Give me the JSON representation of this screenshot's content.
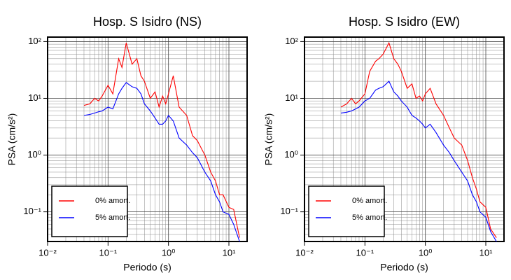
{
  "chart_data": [
    {
      "type": "line",
      "title": "Hosp. S Isidro (NS)",
      "x_label": "Periodo (s)",
      "y_label": "PSA (cm/s²)",
      "xscale": "log",
      "yscale": "log",
      "grid": true,
      "minor_grid": true,
      "legend": "lower left",
      "xlim": [
        0.01,
        20
      ],
      "ylim": [
        0.03,
        120
      ],
      "xticks": [
        {
          "value": 0.01,
          "label": "10⁻²"
        },
        {
          "value": 0.1,
          "label": "10⁻¹"
        },
        {
          "value": 1,
          "label": "10⁰"
        },
        {
          "value": 10,
          "label": "10¹"
        }
      ],
      "yticks": [
        {
          "value": 0.1,
          "label": "10⁻¹"
        },
        {
          "value": 1,
          "label": "10⁰"
        },
        {
          "value": 10,
          "label": "10¹"
        },
        {
          "value": 100,
          "label": "10²"
        }
      ],
      "x": [
        0.04,
        0.05,
        0.06,
        0.07,
        0.08,
        0.1,
        0.12,
        0.15,
        0.17,
        0.2,
        0.25,
        0.3,
        0.35,
        0.4,
        0.5,
        0.6,
        0.7,
        0.8,
        0.9,
        1.0,
        1.2,
        1.5,
        2,
        2.5,
        3,
        4,
        5,
        6,
        7,
        8,
        10,
        12,
        15
      ],
      "series": [
        {
          "name": "0% amort.",
          "color": "#ff0000",
          "values": [
            7.5,
            8,
            10,
            9,
            11,
            17,
            12,
            50,
            35,
            95,
            40,
            50,
            25,
            20,
            10,
            13,
            7,
            11,
            8,
            12,
            25,
            7,
            5,
            2.2,
            1.8,
            1.0,
            0.5,
            0.35,
            0.2,
            0.2,
            0.12,
            0.11,
            0.035
          ]
        },
        {
          "name": "5% amort.",
          "color": "#0000ff",
          "values": [
            5,
            5.2,
            5.5,
            5.8,
            6,
            7,
            6.5,
            12,
            15,
            19,
            16,
            15,
            12,
            8,
            6,
            4.5,
            3.5,
            3.5,
            4,
            5,
            4,
            2,
            1.5,
            1.1,
            0.9,
            0.5,
            0.35,
            0.2,
            0.15,
            0.1,
            0.09,
            0.06,
            0.03
          ]
        }
      ]
    },
    {
      "type": "line",
      "title": "Hosp. S Isidro (EW)",
      "x_label": "Periodo (s)",
      "y_label": "PSA (cm/s²)",
      "xscale": "log",
      "yscale": "log",
      "grid": true,
      "minor_grid": true,
      "legend": "lower left",
      "xlim": [
        0.01,
        20
      ],
      "ylim": [
        0.03,
        120
      ],
      "xticks": [
        {
          "value": 0.01,
          "label": "10⁻²"
        },
        {
          "value": 0.1,
          "label": "10⁻¹"
        },
        {
          "value": 1,
          "label": "10⁰"
        },
        {
          "value": 10,
          "label": "10¹"
        }
      ],
      "yticks": [
        {
          "value": 0.1,
          "label": "10⁻¹"
        },
        {
          "value": 1,
          "label": "10⁰"
        },
        {
          "value": 10,
          "label": "10¹"
        },
        {
          "value": 100,
          "label": "10²"
        }
      ],
      "x": [
        0.04,
        0.05,
        0.06,
        0.07,
        0.08,
        0.1,
        0.12,
        0.15,
        0.17,
        0.2,
        0.25,
        0.3,
        0.35,
        0.4,
        0.5,
        0.6,
        0.7,
        0.8,
        0.9,
        1.0,
        1.2,
        1.5,
        2,
        2.5,
        3,
        4,
        5,
        6,
        7,
        8,
        10,
        12,
        15
      ],
      "series": [
        {
          "name": "0% amort.",
          "color": "#ff0000",
          "values": [
            7,
            8,
            10,
            8,
            9,
            12,
            30,
            45,
            50,
            60,
            95,
            50,
            40,
            30,
            15,
            18,
            10,
            11,
            9,
            12,
            15,
            8,
            5,
            3,
            2,
            1.5,
            0.8,
            0.4,
            0.25,
            0.15,
            0.12,
            0.05,
            0.035
          ]
        },
        {
          "name": "5% amort.",
          "color": "#0000ff",
          "values": [
            5.5,
            5.7,
            6,
            6.5,
            7,
            9,
            10,
            14,
            15,
            16,
            20,
            13,
            11,
            9,
            7,
            5,
            4.5,
            4,
            3.5,
            3,
            3.5,
            2.5,
            1.5,
            1.1,
            0.8,
            0.5,
            0.35,
            0.2,
            0.15,
            0.1,
            0.08,
            0.045,
            0.03
          ]
        }
      ]
    }
  ]
}
